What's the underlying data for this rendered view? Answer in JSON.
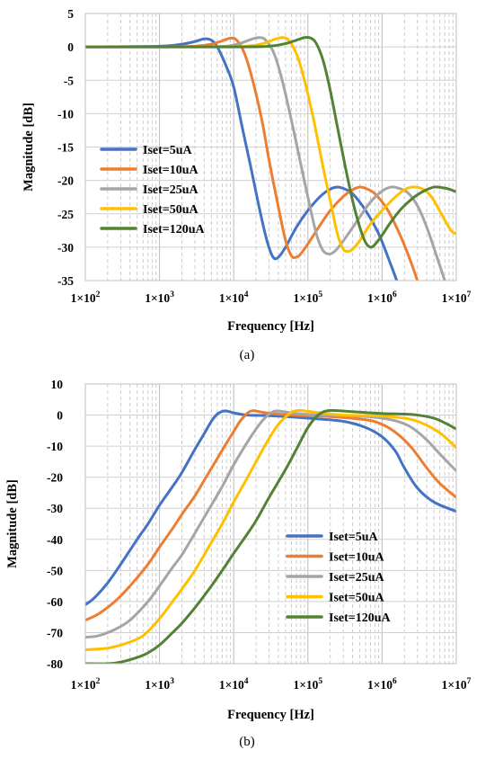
{
  "chart_data": [
    {
      "type": "line",
      "caption": "(a)",
      "xlabel": "Frequency [Hz]",
      "ylabel": "Magnitude [dB]",
      "xscale": "log",
      "xlim": [
        100,
        10000000
      ],
      "ylim": [
        -35,
        5
      ],
      "yticks": [
        5,
        0,
        -5,
        -10,
        -15,
        -20,
        -25,
        -30,
        -35
      ],
      "xtick_labels": [
        {
          "base": "1×10",
          "exp": "2"
        },
        {
          "base": "1×10",
          "exp": "3"
        },
        {
          "base": "1×10",
          "exp": "4"
        },
        {
          "base": "1×10",
          "exp": "5"
        },
        {
          "base": "1×10",
          "exp": "6"
        },
        {
          "base": "1×10",
          "exp": "7"
        }
      ],
      "grid": "major and minor, dashed",
      "legend_position": "lower-left",
      "series": [
        {
          "name": "Iset=5uA",
          "color": "#4472C4",
          "x": [
            100,
            1000,
            2000,
            3000,
            4000,
            5000,
            6000,
            8000,
            10000,
            13000,
            17000,
            22000,
            28000,
            34000,
            40000,
            50000,
            70000,
            100000,
            150000,
            200000,
            250000,
            300000,
            400000,
            600000,
            900000,
            1300000,
            1700000
          ],
          "y": [
            0,
            0.1,
            0.4,
            0.8,
            1.2,
            1.0,
            0,
            -3,
            -6,
            -12,
            -18,
            -24,
            -29,
            -31.5,
            -31.5,
            -30,
            -27,
            -24.5,
            -22.3,
            -21.3,
            -21,
            -21.2,
            -22,
            -24.5,
            -28,
            -32.5,
            -36
          ]
        },
        {
          "name": "Iset=10uA",
          "color": "#ED7D31",
          "x": [
            100,
            1000,
            3000,
            5000,
            7000,
            9000,
            11000,
            14000,
            18000,
            24000,
            30000,
            40000,
            50000,
            60000,
            70000,
            80000,
            100000,
            140000,
            200000,
            300000,
            400000,
            500000,
            600000,
            800000,
            1200000,
            1800000,
            2500000,
            3200000
          ],
          "y": [
            0,
            0,
            0.1,
            0.4,
            0.9,
            1.3,
            1.0,
            -1,
            -5,
            -11,
            -17,
            -24,
            -29,
            -31.3,
            -31.5,
            -31,
            -29.5,
            -27,
            -24.5,
            -22.4,
            -21.4,
            -21,
            -21.2,
            -22,
            -24.5,
            -28.5,
            -32.5,
            -36
          ]
        },
        {
          "name": "Iset=25uA",
          "color": "#A5A5A5",
          "x": [
            100,
            3000,
            8000,
            12000,
            17000,
            22000,
            27000,
            35000,
            45000,
            60000,
            80000,
            100000,
            130000,
            160000,
            200000,
            250000,
            350000,
            500000,
            700000,
            1000000,
            1300000,
            1600000,
            2200000,
            3000000,
            4000000,
            5500000,
            7500000
          ],
          "y": [
            0,
            0,
            0.1,
            0.5,
            1.1,
            1.4,
            1.0,
            -1,
            -5,
            -11,
            -17.5,
            -22.5,
            -28,
            -30.5,
            -31,
            -30.2,
            -28,
            -25.5,
            -23.2,
            -21.6,
            -21,
            -21.1,
            -21.8,
            -23.8,
            -27,
            -31.5,
            -36
          ]
        },
        {
          "name": "Iset=50uA",
          "color": "#FFC000",
          "x": [
            100,
            5000,
            15000,
            25000,
            35000,
            45000,
            55000,
            70000,
            90000,
            120000,
            160000,
            200000,
            250000,
            300000,
            350000,
            400000,
            500000,
            700000,
            1000000,
            1500000,
            2000000,
            2500000,
            3200000,
            4000000,
            5000000,
            6500000,
            8500000,
            10000000
          ],
          "y": [
            0,
            0,
            0.1,
            0.5,
            1.1,
            1.4,
            1.0,
            -1,
            -5,
            -11,
            -18,
            -23,
            -28,
            -30.3,
            -30.6,
            -30.3,
            -29,
            -26.5,
            -24.5,
            -22.5,
            -21.4,
            -21,
            -21.1,
            -21.7,
            -23,
            -25.3,
            -27.5,
            -28
          ]
        },
        {
          "name": "Iset=120uA",
          "color": "#548235",
          "x": [
            100,
            10000,
            30000,
            50000,
            70000,
            90000,
            110000,
            130000,
            160000,
            200000,
            250000,
            320000,
            400000,
            500000,
            600000,
            700000,
            800000,
            1000000,
            1300000,
            1800000,
            2500000,
            3500000,
            5000000,
            6500000,
            8000000,
            10000000
          ],
          "y": [
            0,
            0,
            0.1,
            0.5,
            1.0,
            1.4,
            1.3,
            0.5,
            -2,
            -6.5,
            -12,
            -18,
            -23,
            -27,
            -29.3,
            -30,
            -29.6,
            -28.2,
            -26.3,
            -24.3,
            -22.8,
            -21.7,
            -21,
            -21.1,
            -21.3,
            -21.7
          ]
        }
      ]
    },
    {
      "type": "line",
      "caption": "(b)",
      "xlabel": "Frequency [Hz]",
      "ylabel": "Magnitude [dB]",
      "xscale": "log",
      "xlim": [
        100,
        10000000
      ],
      "ylim": [
        -80,
        10
      ],
      "yticks": [
        10,
        0,
        -10,
        -20,
        -30,
        -40,
        -50,
        -60,
        -70,
        -80
      ],
      "xtick_labels": [
        {
          "base": "1×10",
          "exp": "2"
        },
        {
          "base": "1×10",
          "exp": "3"
        },
        {
          "base": "1×10",
          "exp": "4"
        },
        {
          "base": "1×10",
          "exp": "5"
        },
        {
          "base": "1×10",
          "exp": "6"
        },
        {
          "base": "1×10",
          "exp": "7"
        }
      ],
      "grid": "major and minor, dashed",
      "legend_position": "lower-right",
      "series": [
        {
          "name": "Iset=5uA",
          "color": "#4472C4",
          "x": [
            100,
            130,
            200,
            300,
            500,
            700,
            1000,
            1500,
            2000,
            3000,
            4000,
            5000,
            6000,
            7000,
            8000,
            9000,
            10000,
            15000,
            30000,
            100000,
            300000,
            600000,
            1000000,
            1500000,
            2000000,
            3000000,
            5000000,
            10000000
          ],
          "y": [
            -61,
            -59,
            -54,
            -48,
            -40,
            -35,
            -29,
            -23,
            -18.5,
            -11,
            -6,
            -2,
            0.3,
            1.2,
            1.3,
            1.0,
            0.7,
            0,
            -0.2,
            -1,
            -2,
            -4,
            -7,
            -11.5,
            -17,
            -23.5,
            -28,
            -31
          ]
        },
        {
          "name": "Iset=10uA",
          "color": "#ED7D31",
          "x": [
            100,
            150,
            250,
            400,
            700,
            1000,
            1500,
            2000,
            3000,
            4000,
            6000,
            8000,
            10000,
            12000,
            14000,
            16000,
            18000,
            20000,
            30000,
            60000,
            200000,
            600000,
            1000000,
            1600000,
            2500000,
            4000000,
            6000000,
            10000000
          ],
          "y": [
            -66,
            -64,
            -60,
            -55,
            -48,
            -42.5,
            -36.5,
            -32,
            -26,
            -21,
            -14,
            -9,
            -5.3,
            -2.2,
            -0.3,
            1.0,
            1.4,
            1.3,
            0.6,
            0,
            -0.5,
            -1.5,
            -3,
            -6,
            -10.5,
            -17,
            -22,
            -26.5
          ]
        },
        {
          "name": "Iset=25uA",
          "color": "#A5A5A5",
          "x": [
            100,
            150,
            250,
            400,
            700,
            1000,
            1500,
            2000,
            3000,
            5000,
            7000,
            10000,
            15000,
            20000,
            25000,
            30000,
            35000,
            40000,
            50000,
            70000,
            150000,
            500000,
            1000000,
            1600000,
            2500000,
            4000000,
            6000000,
            10000000
          ],
          "y": [
            -71.5,
            -71,
            -69,
            -66,
            -60,
            -55,
            -49,
            -45,
            -38,
            -29,
            -23,
            -16,
            -9,
            -4.5,
            -1.5,
            0.3,
            1.2,
            1.3,
            1.0,
            0.5,
            0,
            -0.3,
            -1,
            -2,
            -4,
            -8,
            -12.5,
            -18
          ]
        },
        {
          "name": "Iset=50uA",
          "color": "#FFC000",
          "x": [
            100,
            200,
            350,
            600,
            1000,
            1500,
            2000,
            3000,
            5000,
            7000,
            10000,
            15000,
            20000,
            30000,
            40000,
            50000,
            60000,
            70000,
            80000,
            100000,
            150000,
            300000,
            1000000,
            2000000,
            3000000,
            5000000,
            7000000,
            10000000
          ],
          "y": [
            -75.5,
            -75,
            -73.5,
            -71,
            -65.5,
            -60,
            -56,
            -50,
            -41,
            -35,
            -28,
            -20.5,
            -15,
            -7.5,
            -3,
            -0.6,
            0.9,
            1.4,
            1.5,
            1.2,
            0.7,
            0,
            -0.3,
            -1,
            -2,
            -4.5,
            -7,
            -10.5
          ]
        },
        {
          "name": "Iset=120uA",
          "color": "#548235",
          "x": [
            100,
            200,
            300,
            500,
            700,
            1000,
            1500,
            2000,
            3000,
            5000,
            7000,
            10000,
            15000,
            20000,
            30000,
            50000,
            70000,
            100000,
            130000,
            160000,
            200000,
            300000,
            600000,
            1000000,
            2000000,
            3000000,
            5000000,
            7000000,
            10000000
          ],
          "y": [
            -80,
            -80,
            -79.5,
            -78,
            -76.5,
            -74,
            -70,
            -67,
            -62,
            -55,
            -50,
            -44.5,
            -38.5,
            -34,
            -26.5,
            -17.5,
            -11,
            -4,
            -0.5,
            1.0,
            1.5,
            1.3,
            0.8,
            0.5,
            0.3,
            0,
            -1,
            -2.5,
            -4.5
          ]
        }
      ]
    }
  ]
}
